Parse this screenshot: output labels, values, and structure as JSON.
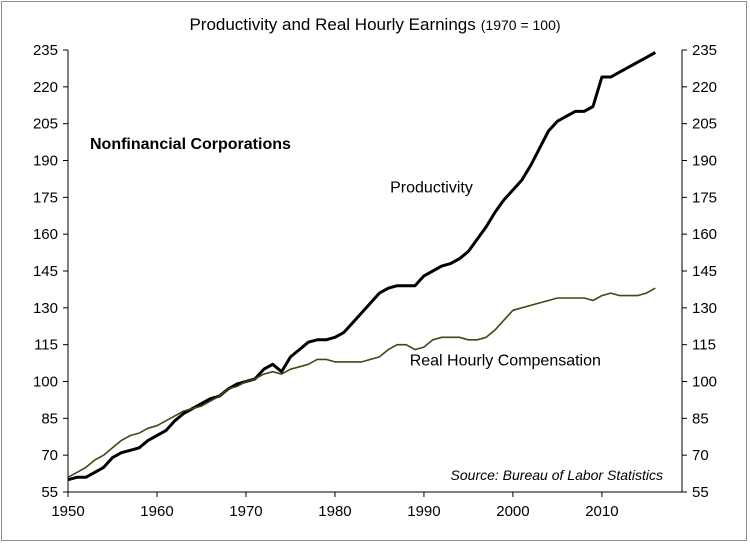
{
  "chart_data": {
    "type": "line",
    "title": "Productivity and Real Hourly Earnings",
    "title_suffix": "(1970 = 100)",
    "xlabel": "",
    "ylabel": "",
    "xlim": [
      1950,
      2019
    ],
    "ylim": [
      55,
      235
    ],
    "x_ticks": [
      1950,
      1960,
      1970,
      1980,
      1990,
      2000,
      2010
    ],
    "y_ticks": [
      55,
      70,
      85,
      100,
      115,
      130,
      145,
      160,
      175,
      190,
      205,
      220,
      235
    ],
    "grid": false,
    "dual_y_axis_mirrored": true,
    "annotations": {
      "subtitle": "Nonfinancial Corporations",
      "source": "Source: Bureau of Labor Statistics"
    },
    "series": [
      {
        "name": "Productivity",
        "color": "#000000",
        "x": [
          1950,
          1951,
          1952,
          1953,
          1954,
          1955,
          1956,
          1957,
          1958,
          1959,
          1960,
          1961,
          1962,
          1963,
          1964,
          1965,
          1966,
          1967,
          1968,
          1969,
          1970,
          1971,
          1972,
          1973,
          1974,
          1975,
          1976,
          1977,
          1978,
          1979,
          1980,
          1981,
          1982,
          1983,
          1984,
          1985,
          1986,
          1987,
          1988,
          1989,
          1990,
          1991,
          1992,
          1993,
          1994,
          1995,
          1996,
          1997,
          1998,
          1999,
          2000,
          2001,
          2002,
          2003,
          2004,
          2005,
          2006,
          2007,
          2008,
          2009,
          2010,
          2011,
          2012,
          2013,
          2014,
          2015,
          2016
        ],
        "values": [
          60,
          61,
          61,
          63,
          65,
          69,
          71,
          72,
          73,
          76,
          78,
          80,
          84,
          87,
          89,
          91,
          93,
          94,
          97,
          99,
          100,
          101,
          105,
          107,
          104,
          110,
          113,
          116,
          117,
          117,
          118,
          120,
          124,
          128,
          132,
          136,
          138,
          139,
          139,
          139,
          143,
          145,
          147,
          148,
          150,
          153,
          158,
          163,
          169,
          174,
          178,
          182,
          188,
          195,
          202,
          206,
          208,
          210,
          210,
          212,
          224,
          224,
          226,
          228,
          230,
          232,
          234
        ]
      },
      {
        "name": "Real Hourly Compensation",
        "color": "#3d4a16",
        "x": [
          1950,
          1951,
          1952,
          1953,
          1954,
          1955,
          1956,
          1957,
          1958,
          1959,
          1960,
          1961,
          1962,
          1963,
          1964,
          1965,
          1966,
          1967,
          1968,
          1969,
          1970,
          1971,
          1972,
          1973,
          1974,
          1975,
          1976,
          1977,
          1978,
          1979,
          1980,
          1981,
          1982,
          1983,
          1984,
          1985,
          1986,
          1987,
          1988,
          1989,
          1990,
          1991,
          1992,
          1993,
          1994,
          1995,
          1996,
          1997,
          1998,
          1999,
          2000,
          2001,
          2002,
          2003,
          2004,
          2005,
          2006,
          2007,
          2008,
          2009,
          2010,
          2011,
          2012,
          2013,
          2014,
          2015,
          2016
        ],
        "values": [
          61,
          63,
          65,
          68,
          70,
          73,
          76,
          78,
          79,
          81,
          82,
          84,
          86,
          88,
          89,
          90,
          92,
          94,
          97,
          98,
          100,
          101,
          103,
          104,
          103,
          105,
          106,
          107,
          109,
          109,
          108,
          108,
          108,
          108,
          109,
          110,
          113,
          115,
          115,
          113,
          114,
          117,
          118,
          118,
          118,
          117,
          117,
          118,
          121,
          125,
          129,
          130,
          131,
          132,
          133,
          134,
          134,
          134,
          134,
          133,
          135,
          136,
          135,
          135,
          135,
          136,
          138
        ]
      }
    ]
  }
}
